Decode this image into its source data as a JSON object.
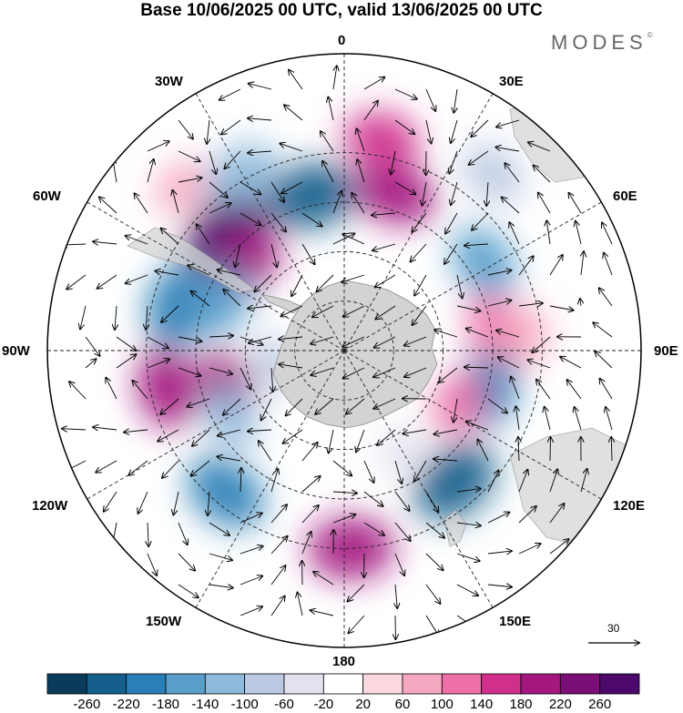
{
  "title": "Base 10/06/2025 00 UTC, valid 13/06/2025 00 UTC",
  "brand": "MODES",
  "brand_mark": "©",
  "longitude_labels": {
    "lon_0": "0",
    "lon_30e": "30E",
    "lon_60e": "60E",
    "lon_90e": "90E",
    "lon_120e": "120E",
    "lon_150e": "150E",
    "lon_180": "180",
    "lon_150w": "150W",
    "lon_120w": "120W",
    "lon_90w": "90W",
    "lon_60w": "60W",
    "lon_30w": "30W"
  },
  "reference_vector": {
    "value": "30"
  },
  "colorbar": {
    "ticks": [
      "-260",
      "-220",
      "-180",
      "-140",
      "-100",
      "-60",
      "-20",
      "20",
      "60",
      "100",
      "140",
      "180",
      "220",
      "260"
    ],
    "colors": [
      "#0b3b5a",
      "#155f8c",
      "#2a7fb6",
      "#5a9fcb",
      "#8db9db",
      "#bcc9e2",
      "#e4e2ef",
      "#ffffff",
      "#fbd8e0",
      "#f6a8c0",
      "#ee6fa8",
      "#d02f8c",
      "#a4177f",
      "#7a0e76",
      "#4d086b"
    ]
  },
  "map": {
    "projection": "south-polar-stereographic",
    "land_color": "#d3d3d3",
    "anomaly_cells": [
      {
        "lon": -45,
        "lat": -40,
        "value": 280
      },
      {
        "lon": -48,
        "lat": -50,
        "value": 200
      },
      {
        "lon": -12,
        "lat": -42,
        "value": -250
      },
      {
        "lon": -30,
        "lat": -28,
        "value": -140
      },
      {
        "lon": -75,
        "lat": -38,
        "value": -220
      },
      {
        "lon": -68,
        "lat": -50,
        "value": -160
      },
      {
        "lon": -102,
        "lat": -35,
        "value": 180
      },
      {
        "lon": -108,
        "lat": -52,
        "value": 200
      },
      {
        "lon": -140,
        "lat": -34,
        "value": -200
      },
      {
        "lon": -120,
        "lat": -50,
        "value": -120
      },
      {
        "lon": -100,
        "lat": -68,
        "value": -80
      },
      {
        "lon": 178,
        "lat": -30,
        "value": 200
      },
      {
        "lon": 140,
        "lat": -38,
        "value": -240
      },
      {
        "lon": 105,
        "lat": -45,
        "value": -200
      },
      {
        "lon": 115,
        "lat": -52,
        "value": 120
      },
      {
        "lon": 18,
        "lat": -40,
        "value": 200
      },
      {
        "lon": 10,
        "lat": -25,
        "value": 140
      },
      {
        "lon": 58,
        "lat": -40,
        "value": -180
      },
      {
        "lon": 40,
        "lat": -20,
        "value": -100
      },
      {
        "lon": 80,
        "lat": -45,
        "value": 100
      },
      {
        "lon": 85,
        "lat": -35,
        "value": 80
      },
      {
        "lon": -45,
        "lat": -20,
        "value": 60
      },
      {
        "lon": 150,
        "lat": -55,
        "value": -60
      }
    ]
  }
}
